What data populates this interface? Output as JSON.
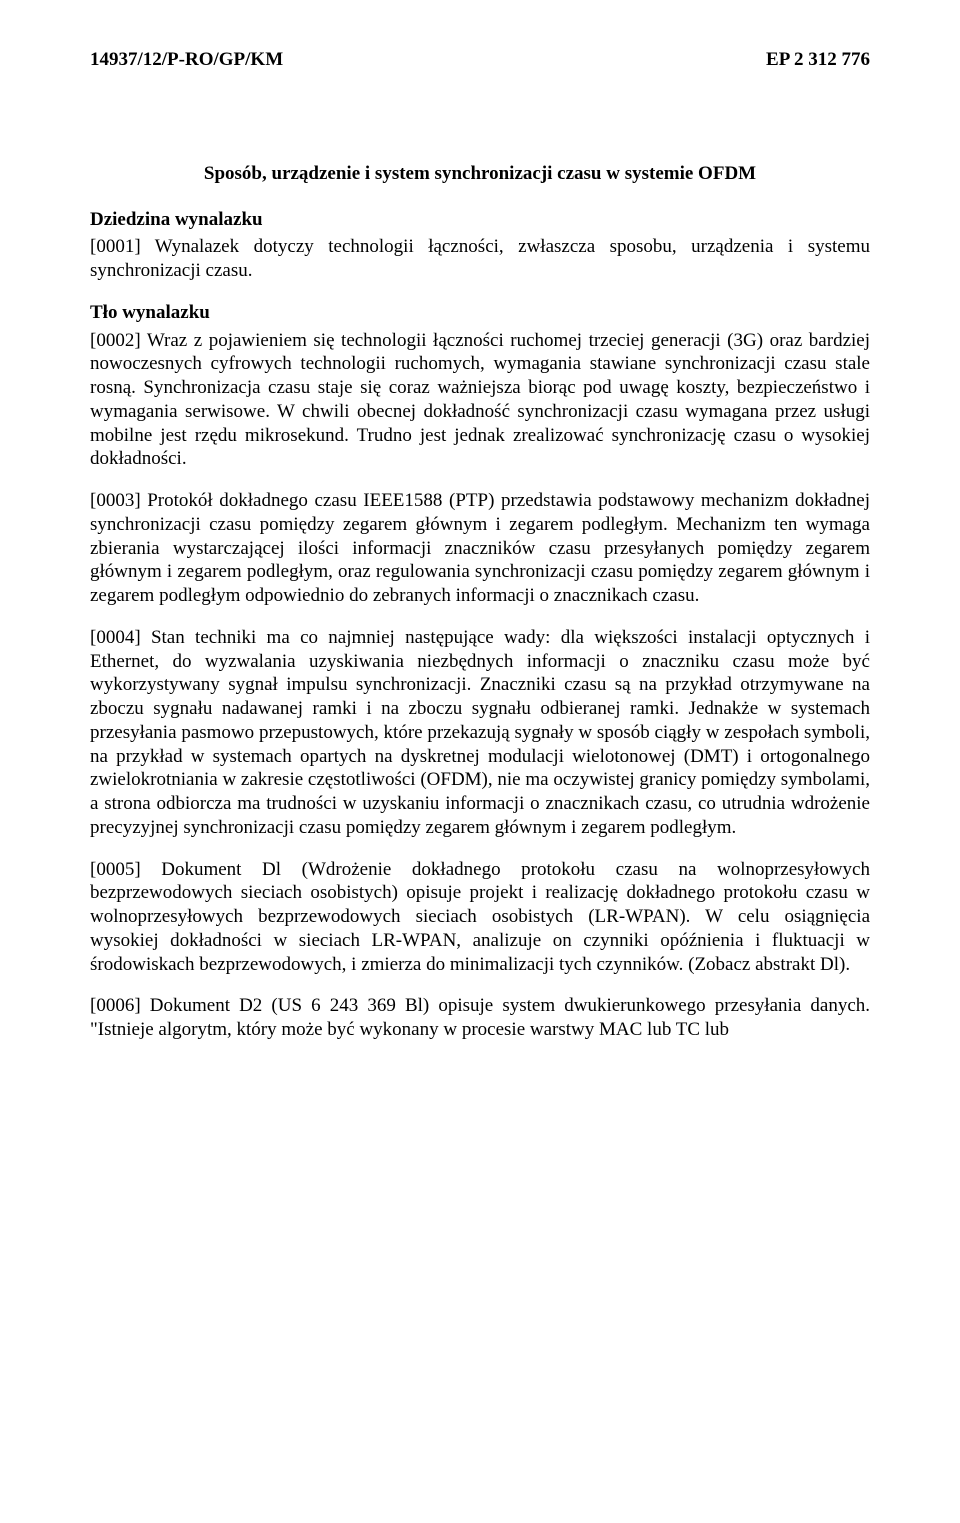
{
  "header": {
    "left": "14937/12/P-RO/GP/KM",
    "right": "EP 2 312 776"
  },
  "title": "Sposób, urządzenie i system synchronizacji czasu w systemie OFDM",
  "section1": {
    "heading": "Dziedzina wynalazku",
    "p1": "[0001] Wynalazek dotyczy technologii łączności, zwłaszcza sposobu, urządzenia i systemu synchronizacji czasu."
  },
  "section2": {
    "heading": "Tło wynalazku",
    "p2": "[0002] Wraz z pojawieniem się technologii łączności ruchomej trzeciej generacji (3G) oraz bardziej nowoczesnych cyfrowych technologii ruchomych, wymagania stawiane synchronizacji czasu stale rosną. Synchronizacja czasu staje się coraz ważniejsza biorąc pod uwagę koszty, bezpieczeństwo i wymagania serwisowe. W chwili obecnej dokładność synchronizacji czasu wymagana przez usługi mobilne jest rzędu mikrosekund. Trudno jest jednak zrealizować synchronizację czasu o wysokiej dokładności.",
    "p3": "[0003] Protokół dokładnego czasu IEEE1588 (PTP) przedstawia podstawowy mechanizm dokładnej synchronizacji czasu pomiędzy zegarem głównym i zegarem podległym. Mechanizm ten wymaga zbierania wystarczającej ilości informacji znaczników czasu przesyłanych pomiędzy zegarem głównym i zegarem podległym, oraz regulowania synchronizacji czasu pomiędzy zegarem głównym i zegarem podległym odpowiednio do zebranych informacji o znacznikach czasu.",
    "p4": "[0004] Stan techniki ma co najmniej następujące wady: dla większości instalacji optycznych i Ethernet, do wyzwalania uzyskiwania niezbędnych informacji o znaczniku czasu może być wykorzystywany sygnał impulsu synchronizacji. Znaczniki czasu są na przykład otrzymywane na zboczu sygnału nadawanej ramki i na zboczu sygnału odbieranej ramki. Jednakże w systemach przesyłania pasmowo przepustowych, które przekazują sygnały w sposób ciągły w zespołach symboli, na przykład w systemach opartych na dyskretnej modulacji wielotonowej (DMT) i ortogonalnego zwielokrotniania w zakresie częstotliwości (OFDM), nie ma oczywistej granicy pomiędzy symbolami, a strona odbiorcza ma trudności w uzyskaniu informacji o znacznikach czasu, co utrudnia wdrożenie precyzyjnej synchronizacji czasu pomiędzy zegarem głównym i zegarem podległym.",
    "p5": "[0005] Dokument Dl (Wdrożenie dokładnego protokołu czasu na wolnoprzesyłowych bezprzewodowych sieciach osobistych) opisuje projekt i realizację dokładnego protokołu czasu w wolnoprzesyłowych bezprzewodowych sieciach osobistych (LR-WPAN). W celu osiągnięcia wysokiej dokładności w sieciach LR-WPAN, analizuje on czynniki opóźnienia i fluktuacji w środowiskach bezprzewodowych, i zmierza do minimalizacji tych czynników. (Zobacz abstrakt Dl).",
    "p6": "[0006] Dokument D2 (US 6 243 369 Bl) opisuje system dwukierunkowego przesyłania danych. \"Istnieje algorytm, który może być wykonany w procesie warstwy MAC lub TC lub"
  }
}
